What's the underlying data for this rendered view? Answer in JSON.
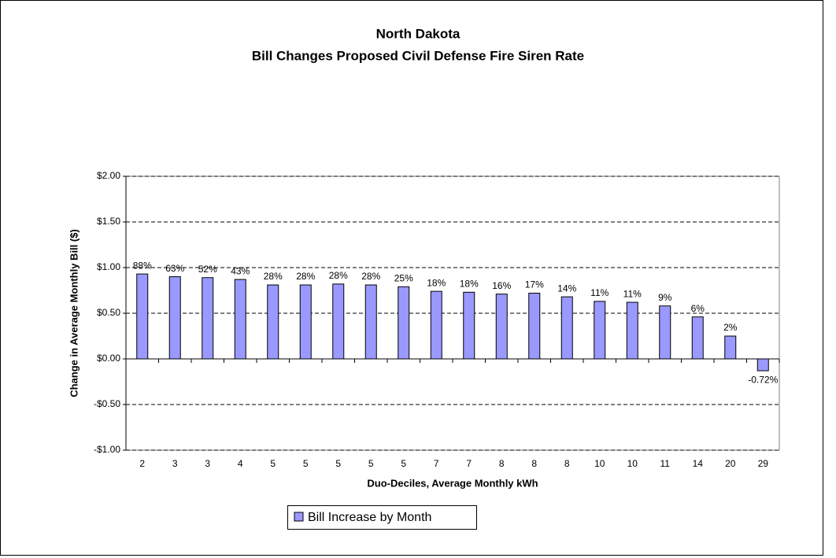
{
  "chart_data": {
    "type": "bar",
    "title": [
      "North Dakota",
      "Bill Changes Proposed Civil Defense Fire Siren Rate"
    ],
    "x_label": "Duo-Deciles, Average Monthly kWh",
    "y_label": "Change in Average Monthly Bill  ($)",
    "categories": [
      "2",
      "3",
      "3",
      "4",
      "5",
      "5",
      "5",
      "5",
      "5",
      "7",
      "7",
      "8",
      "8",
      "8",
      "10",
      "10",
      "11",
      "14",
      "20",
      "29"
    ],
    "series": [
      {
        "name": "Bill Increase by Month",
        "color": "#9999ff",
        "values": [
          0.93,
          0.9,
          0.89,
          0.87,
          0.81,
          0.81,
          0.82,
          0.81,
          0.79,
          0.74,
          0.73,
          0.71,
          0.72,
          0.68,
          0.63,
          0.62,
          0.58,
          0.46,
          0.25,
          -0.13
        ]
      }
    ],
    "bar_labels": [
      "88%",
      "63%",
      "52%",
      "43%",
      "28%",
      "28%",
      "28%",
      "28%",
      "25%",
      "18%",
      "18%",
      "16%",
      "17%",
      "14%",
      "11%",
      "11%",
      "9%",
      "6%",
      "2%",
      "-0.72%"
    ],
    "ylim": [
      -1,
      2
    ],
    "yticks": [
      {
        "value": -1,
        "label": "-$1.00"
      },
      {
        "value": -0.5,
        "label": "-$0.50"
      },
      {
        "value": 0,
        "label": "$0.00"
      },
      {
        "value": 0.5,
        "label": "$0.50"
      },
      {
        "value": 1,
        "label": "$1.00"
      },
      {
        "value": 1.5,
        "label": "$1.50"
      },
      {
        "value": 2,
        "label": "$2.00"
      }
    ],
    "grid": true
  }
}
